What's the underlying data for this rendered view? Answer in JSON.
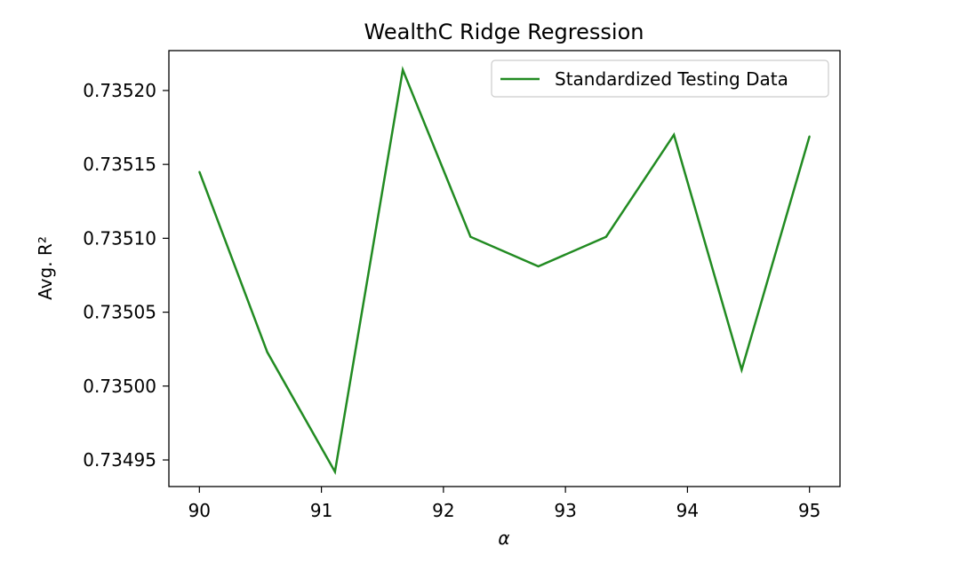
{
  "chart_data": {
    "type": "line",
    "title": "WealthC Ridge Regression",
    "xlabel": "α",
    "ylabel": "Avg. R²",
    "xlim": [
      89.75,
      95.25
    ],
    "ylim": [
      0.734932,
      0.735227
    ],
    "x_ticks": [
      90,
      91,
      92,
      93,
      94,
      95
    ],
    "x_tick_labels": [
      "90",
      "91",
      "92",
      "93",
      "94",
      "95"
    ],
    "y_ticks": [
      0.73495,
      0.735,
      0.73505,
      0.7351,
      0.73515,
      0.7352
    ],
    "y_tick_labels": [
      "0.73495",
      "0.73500",
      "0.73505",
      "0.73510",
      "0.73515",
      "0.73520"
    ],
    "grid": false,
    "legend_position": "top-right",
    "series": [
      {
        "name": "Standardized Testing Data",
        "color": "#228b22",
        "x": [
          90.0,
          90.556,
          91.111,
          91.667,
          92.222,
          92.778,
          93.333,
          93.889,
          94.444,
          95.0
        ],
        "y": [
          0.735145,
          0.735023,
          0.734942,
          0.735214,
          0.735101,
          0.735081,
          0.735101,
          0.73517,
          0.735011,
          0.735169
        ]
      }
    ]
  }
}
